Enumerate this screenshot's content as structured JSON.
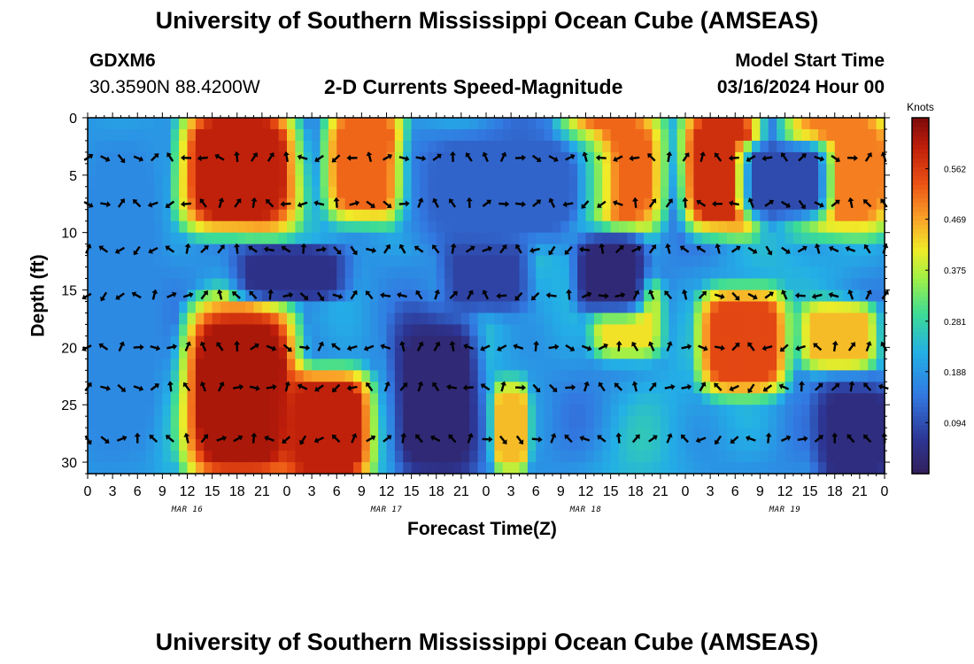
{
  "page": {
    "title_top": "University of Southern Mississippi Ocean Cube (AMSEAS)",
    "title_bottom": "University of Southern Mississippi Ocean Cube (AMSEAS)",
    "station_id": "GDXM6",
    "station_coords": "30.3590N  88.4200W",
    "subtitle": "2-D Currents Speed-Magnitude",
    "model_start_label": "Model Start Time",
    "model_start_value": "03/16/2024 Hour 00"
  },
  "chart_data": {
    "type": "heatmap",
    "title": "2-D Currents Speed-Magnitude",
    "xlabel": "Forecast Time(Z)",
    "ylabel": "Depth (ft)",
    "x_tick_labels": [
      "0",
      "3",
      "6",
      "9",
      "12",
      "15",
      "18",
      "21",
      "0",
      "3",
      "6",
      "9",
      "12",
      "15",
      "18",
      "21",
      "0",
      "3",
      "6",
      "9",
      "12",
      "15",
      "18",
      "21",
      "0",
      "3",
      "6",
      "9",
      "12",
      "15",
      "18",
      "21",
      "0"
    ],
    "date_labels": [
      "MAR 16",
      "MAR 17",
      "MAR 18",
      "MAR 19"
    ],
    "xlim_hours": [
      0,
      96
    ],
    "ylim_ft": [
      0,
      31
    ],
    "y_ticks": [
      0,
      5,
      10,
      15,
      20,
      25,
      30
    ],
    "colorbar": {
      "unit": "Knots",
      "ticks": [
        "0.094",
        "0.188",
        "0.281",
        "0.375",
        "0.469",
        "0.562"
      ],
      "tick_values": [
        0.094,
        0.188,
        0.281,
        0.375,
        0.469,
        0.562
      ],
      "range": [
        0,
        0.656
      ]
    },
    "arrow_depths_ft": [
      3.5,
      7.5,
      11.5,
      15.5,
      20,
      23.5,
      28
    ],
    "speed_features": [
      {
        "t0": 12.5,
        "t1": 24,
        "d0": 0,
        "d1": 9,
        "speed": 0.6
      },
      {
        "t0": 30,
        "t1": 37,
        "d0": 0,
        "d1": 8,
        "speed": 0.52
      },
      {
        "t0": 58,
        "t1": 68,
        "d0": 0,
        "d1": 9,
        "speed": 0.52
      },
      {
        "t0": 73,
        "t1": 80,
        "d0": 0,
        "d1": 9,
        "speed": 0.58
      },
      {
        "t0": 85,
        "t1": 96,
        "d0": 0,
        "d1": 9,
        "speed": 0.5
      },
      {
        "t0": 13,
        "t1": 24,
        "d0": 17,
        "d1": 31,
        "speed": 0.62
      },
      {
        "t0": 24.5,
        "t1": 33,
        "d0": 23,
        "d1": 31,
        "speed": 0.6
      },
      {
        "t0": 62,
        "t1": 68,
        "d0": 15,
        "d1": 20,
        "speed": 0.42
      },
      {
        "t0": 75,
        "t1": 83,
        "d0": 16,
        "d1": 23,
        "speed": 0.55
      },
      {
        "t0": 87,
        "t1": 94,
        "d0": 17,
        "d1": 21,
        "speed": 0.45
      },
      {
        "t0": 50,
        "t1": 52,
        "d0": 24,
        "d1": 30,
        "speed": 0.45
      },
      {
        "t0": 19,
        "t1": 30,
        "d0": 12,
        "d1": 15,
        "speed": 0.05
      },
      {
        "t0": 38,
        "t1": 46,
        "d0": 18,
        "d1": 31,
        "speed": 0.03
      },
      {
        "t0": 44,
        "t1": 52,
        "d0": 11,
        "d1": 16,
        "speed": 0.08
      },
      {
        "t0": 60,
        "t1": 66,
        "d0": 11,
        "d1": 16,
        "speed": 0.03
      },
      {
        "t0": 80,
        "t1": 88,
        "d0": 3,
        "d1": 8,
        "speed": 0.09
      },
      {
        "t0": 89,
        "t1": 96,
        "d0": 24,
        "d1": 31,
        "speed": 0.04
      },
      {
        "t0": 0,
        "t1": 8,
        "d0": 0,
        "d1": 31,
        "speed": 0.17
      },
      {
        "t0": 40,
        "t1": 60,
        "d0": 2,
        "d1": 10,
        "speed": 0.12
      }
    ]
  }
}
